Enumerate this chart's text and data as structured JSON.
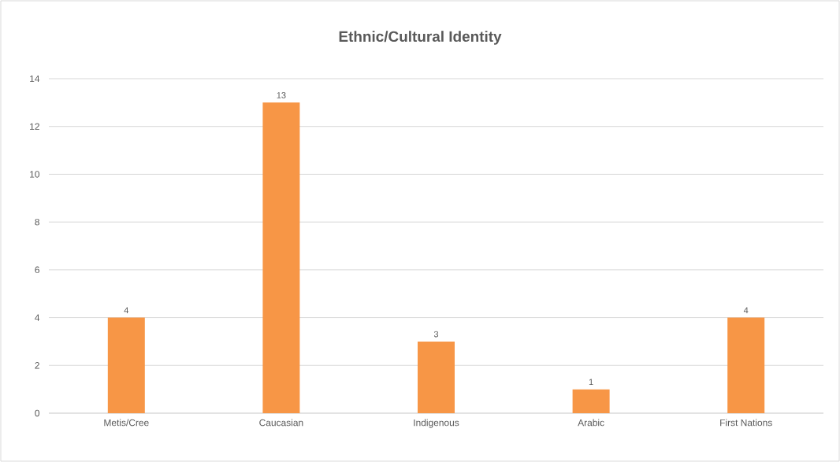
{
  "chart_data": {
    "type": "bar",
    "title": "Ethnic/Cultural Identity",
    "categories": [
      "Metis/Cree",
      "Caucasian",
      "Indigenous",
      "Arabic",
      "First Nations"
    ],
    "values": [
      4,
      13,
      3,
      1,
      4
    ],
    "color": "#f79646",
    "ylim": [
      0,
      14
    ],
    "yticks": [
      0,
      2,
      4,
      6,
      8,
      10,
      12,
      14
    ],
    "grid": "y",
    "data_labels": true
  }
}
